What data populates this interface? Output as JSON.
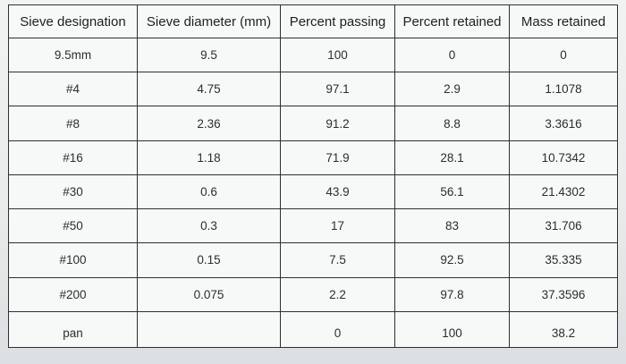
{
  "table": {
    "headers": [
      "Sieve designation",
      "Sieve diameter (mm)",
      "Percent passing",
      "Percent retained",
      "Mass retained"
    ],
    "rows": [
      [
        "9.5mm",
        "9.5",
        "100",
        "0",
        "0"
      ],
      [
        "#4",
        "4.75",
        "97.1",
        "2.9",
        "1.1078"
      ],
      [
        "#8",
        "2.36",
        "91.2",
        "8.8",
        "3.3616"
      ],
      [
        "#16",
        "1.18",
        "71.9",
        "28.1",
        "10.7342"
      ],
      [
        "#30",
        "0.6",
        "43.9",
        "56.1",
        "21.4302"
      ],
      [
        "#50",
        "0.3",
        "17",
        "83",
        "31.706"
      ],
      [
        "#100",
        "0.15",
        "7.5",
        "92.5",
        "35.335"
      ],
      [
        "#200",
        "0.075",
        "2.2",
        "97.8",
        "37.3596"
      ],
      [
        "pan",
        "",
        "0",
        "100",
        "38.2"
      ]
    ]
  }
}
